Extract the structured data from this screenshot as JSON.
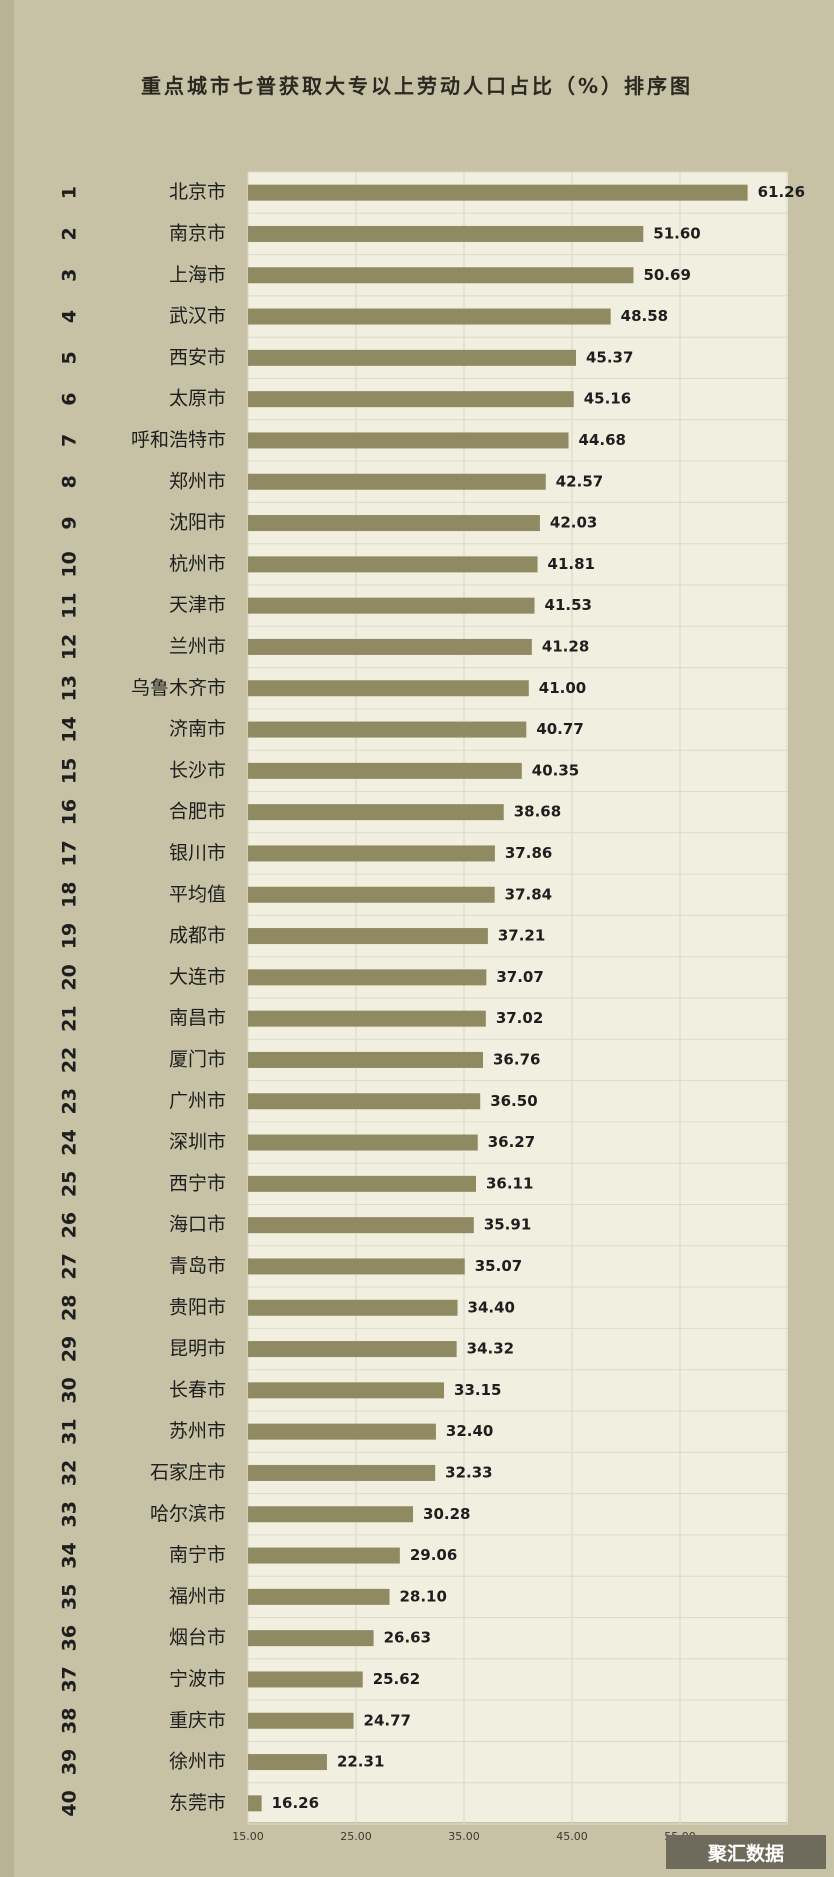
{
  "chart_data": {
    "type": "bar",
    "orientation": "horizontal",
    "title": "重点城市七普获取大专以上劳动人口占比（%）排序图",
    "xlim": [
      15,
      65
    ],
    "ticks": [
      "15.00",
      "25.00",
      "35.00",
      "45.00",
      "55.00"
    ],
    "tick_values": [
      15,
      25,
      35,
      45,
      55
    ],
    "grid": true,
    "bar_color": "#8f8a62",
    "ranks": [
      "1",
      "2",
      "3",
      "4",
      "5",
      "6",
      "7",
      "8",
      "9",
      "10",
      "11",
      "12",
      "13",
      "14",
      "15",
      "16",
      "17",
      "18",
      "19",
      "20",
      "21",
      "22",
      "23",
      "24",
      "25",
      "26",
      "27",
      "28",
      "29",
      "30",
      "31",
      "32",
      "33",
      "34",
      "35",
      "36",
      "37",
      "38",
      "39",
      "40"
    ],
    "categories": [
      "北京市",
      "南京市",
      "上海市",
      "武汉市",
      "西安市",
      "太原市",
      "呼和浩特市",
      "郑州市",
      "沈阳市",
      "杭州市",
      "天津市",
      "兰州市",
      "乌鲁木齐市",
      "济南市",
      "长沙市",
      "合肥市",
      "银川市",
      "平均值",
      "成都市",
      "大连市",
      "南昌市",
      "厦门市",
      "广州市",
      "深圳市",
      "西宁市",
      "海口市",
      "青岛市",
      "贵阳市",
      "昆明市",
      "长春市",
      "苏州市",
      "石家庄市",
      "哈尔滨市",
      "南宁市",
      "福州市",
      "烟台市",
      "宁波市",
      "重庆市",
      "徐州市",
      "东莞市"
    ],
    "values": [
      61.26,
      51.6,
      50.69,
      48.58,
      45.37,
      45.16,
      44.68,
      42.57,
      42.03,
      41.81,
      41.53,
      41.28,
      41.0,
      40.77,
      40.35,
      38.68,
      37.86,
      37.84,
      37.21,
      37.07,
      37.02,
      36.76,
      36.5,
      36.27,
      36.11,
      35.91,
      35.07,
      34.4,
      34.32,
      33.15,
      32.4,
      32.33,
      30.28,
      29.06,
      28.1,
      26.63,
      25.62,
      24.77,
      22.31,
      16.26
    ],
    "labels": [
      "61.26",
      "51.60",
      "50.69",
      "48.58",
      "45.37",
      "45.16",
      "44.68",
      "42.57",
      "42.03",
      "41.81",
      "41.53",
      "41.28",
      "41.00",
      "40.77",
      "40.35",
      "38.68",
      "37.86",
      "37.84",
      "37.21",
      "37.07",
      "37.02",
      "36.76",
      "36.50",
      "36.27",
      "36.11",
      "35.91",
      "35.07",
      "34.40",
      "34.32",
      "33.15",
      "32.40",
      "32.33",
      "30.28",
      "29.06",
      "28.10",
      "26.63",
      "25.62",
      "24.77",
      "22.31",
      "16.26"
    ]
  },
  "watermark": {
    "text": "聚汇数据"
  }
}
